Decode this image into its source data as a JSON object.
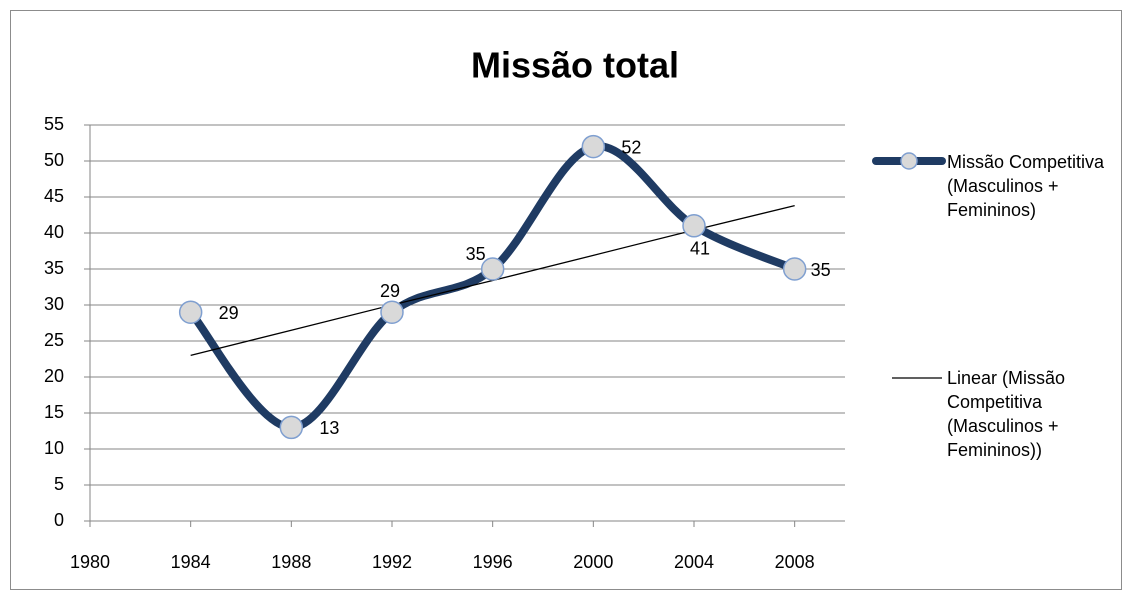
{
  "chart_data": {
    "type": "line",
    "title": "Missão total",
    "x": [
      1984,
      1988,
      1992,
      1996,
      2000,
      2004,
      2008
    ],
    "series": [
      {
        "name": "Missão Competitiva (Masculinos + Femininos)",
        "color": "#1f3b63",
        "values": [
          29,
          13,
          29,
          35,
          52,
          41,
          35
        ]
      },
      {
        "name": "Linear (Missão Competitiva (Masculinos + Femininos))",
        "color": "#000000",
        "values": [
          23.0,
          26.5,
          30.0,
          33.4,
          36.9,
          40.4,
          43.8
        ]
      }
    ],
    "xlim": [
      1980,
      2010
    ],
    "xticks": [
      1980,
      1984,
      1988,
      1992,
      1996,
      2000,
      2004,
      2008
    ],
    "ylim": [
      0,
      55
    ],
    "yticks": [
      0,
      5,
      10,
      15,
      20,
      25,
      30,
      35,
      40,
      45,
      50,
      55
    ],
    "grid": true,
    "legend": "right"
  }
}
